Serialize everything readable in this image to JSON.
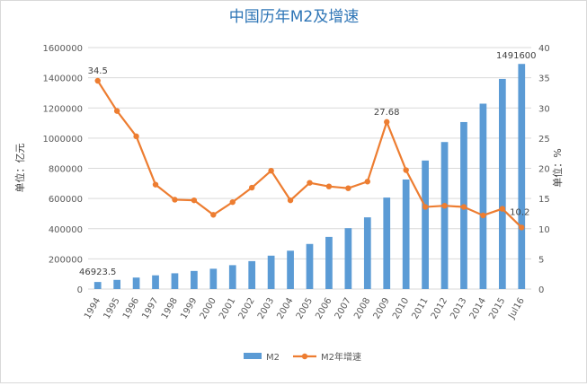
{
  "chart_data": {
    "type": "bar+line",
    "title": "中国历年M2及增速",
    "y_left_label": "单位：亿元",
    "y_right_label": "单位：%",
    "y_left_ticks": [
      "0",
      "200000",
      "400000",
      "600000",
      "800000",
      "1000000",
      "1200000",
      "1400000",
      "1600000"
    ],
    "y_right_ticks": [
      "0",
      "5",
      "10",
      "15",
      "20",
      "25",
      "30",
      "35",
      "40"
    ],
    "y_left_lim": [
      0,
      1600000
    ],
    "y_right_lim": [
      0,
      40
    ],
    "categories": [
      "1994",
      "1995",
      "1996",
      "1997",
      "1998",
      "1999",
      "2000",
      "2001",
      "2002",
      "2003",
      "2004",
      "2005",
      "2006",
      "2007",
      "2008",
      "2009",
      "2010",
      "2011",
      "2012",
      "2013",
      "2014",
      "2015",
      "Jul16"
    ],
    "grid": "horizontal",
    "legend_position": "bottom",
    "colors": {
      "bars": "#5B9BD5",
      "line": "#ED7D31",
      "title": "#2E75B6",
      "grid": "#d9d9d9"
    },
    "series": [
      {
        "name": "M2",
        "kind": "bar",
        "axis": "left",
        "values": [
          46923.5,
          60750,
          76095,
          90995,
          104499,
          119898,
          134610,
          158302,
          185007,
          221223,
          254107,
          298756,
          345604,
          403442,
          475167,
          606225,
          725852,
          851591,
          974149,
          1106525,
          1228375,
          1392278,
          1491600
        ]
      },
      {
        "name": "M2年增速",
        "kind": "line",
        "axis": "right",
        "values": [
          34.5,
          29.5,
          25.3,
          17.3,
          14.8,
          14.7,
          12.3,
          14.4,
          16.8,
          19.6,
          14.7,
          17.6,
          17.0,
          16.7,
          17.8,
          27.68,
          19.7,
          13.6,
          13.8,
          13.6,
          12.2,
          13.3,
          10.2
        ]
      }
    ],
    "data_labels": [
      {
        "series": 0,
        "index": 0,
        "text": "46923.5"
      },
      {
        "series": 0,
        "index": 22,
        "text": "1491600"
      },
      {
        "series": 1,
        "index": 0,
        "text": "34.5"
      },
      {
        "series": 1,
        "index": 15,
        "text": "27.68"
      },
      {
        "series": 1,
        "index": 22,
        "text": "10.2"
      }
    ]
  }
}
